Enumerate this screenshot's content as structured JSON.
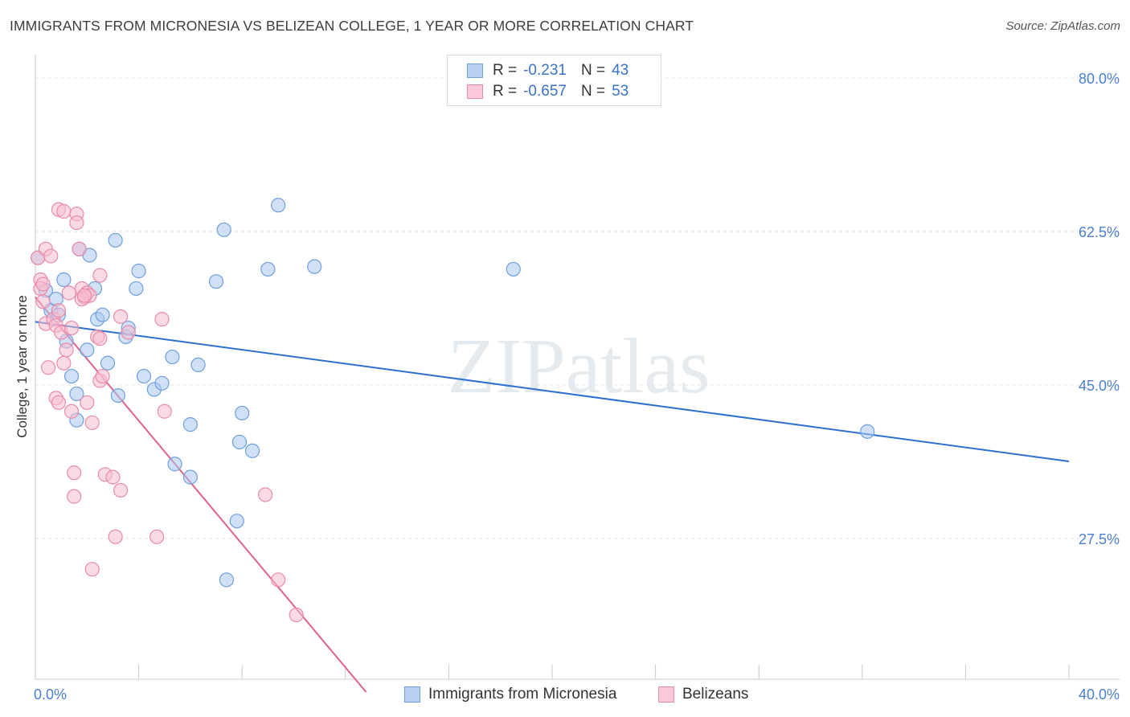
{
  "chart_data": {
    "type": "scatter",
    "title": "IMMIGRANTS FROM MICRONESIA VS BELIZEAN COLLEGE, 1 YEAR OR MORE CORRELATION CHART",
    "source": "Source: ZipAtlas.com",
    "xlabel": "",
    "ylabel": "College, 1 year or more",
    "xlim": [
      0,
      40
    ],
    "ylim": [
      10,
      83
    ],
    "x_tick_labels": [
      "0.0%",
      "40.0%"
    ],
    "y_ticks": [
      27.5,
      45.0,
      62.5,
      80.0
    ],
    "y_tick_labels": [
      "27.5%",
      "45.0%",
      "62.5%",
      "80.0%"
    ],
    "grid": true,
    "watermark": "ZIPatlas",
    "legend": {
      "position": "top-center",
      "entries": [
        {
          "r_label": "R =",
          "r_value": "-0.231",
          "n_label": "N =",
          "n_value": "43"
        },
        {
          "r_label": "R =",
          "r_value": "-0.657",
          "n_label": "N =",
          "n_value": "53"
        }
      ]
    },
    "series": [
      {
        "name": "Immigrants from Micronesia",
        "color": "#a9c6ee",
        "stroke": "#6f9fdd",
        "line_color": "#2d6fd0",
        "trend": {
          "x": [
            0,
            40
          ],
          "y": [
            52.2,
            36.3
          ]
        },
        "points": [
          [
            0.1,
            59.5
          ],
          [
            0.4,
            55.8
          ],
          [
            0.6,
            53.5
          ],
          [
            0.8,
            54.8
          ],
          [
            1.1,
            57.0
          ],
          [
            1.2,
            50.0
          ],
          [
            1.4,
            46.0
          ],
          [
            1.6,
            44.0
          ],
          [
            1.7,
            60.5
          ],
          [
            2.1,
            59.8
          ],
          [
            2.3,
            56.0
          ],
          [
            2.4,
            52.5
          ],
          [
            2.6,
            53.0
          ],
          [
            2.8,
            47.5
          ],
          [
            3.1,
            61.5
          ],
          [
            3.2,
            43.8
          ],
          [
            3.5,
            50.5
          ],
          [
            3.6,
            51.5
          ],
          [
            3.9,
            56.0
          ],
          [
            4.0,
            58.0
          ],
          [
            4.2,
            46.0
          ],
          [
            4.6,
            44.5
          ],
          [
            4.9,
            45.2
          ],
          [
            5.3,
            48.2
          ],
          [
            5.4,
            36.0
          ],
          [
            6.0,
            40.5
          ],
          [
            6.3,
            47.3
          ],
          [
            6.0,
            34.5
          ],
          [
            7.0,
            56.8
          ],
          [
            7.3,
            62.7
          ],
          [
            7.4,
            22.8
          ],
          [
            7.8,
            29.5
          ],
          [
            7.9,
            38.5
          ],
          [
            8.0,
            41.8
          ],
          [
            8.4,
            37.5
          ],
          [
            9.0,
            58.2
          ],
          [
            9.4,
            65.5
          ],
          [
            10.8,
            58.5
          ],
          [
            18.5,
            58.2
          ],
          [
            32.2,
            39.7
          ],
          [
            1.6,
            41.0
          ],
          [
            0.9,
            53.0
          ],
          [
            2.0,
            49.0
          ]
        ]
      },
      {
        "name": "Belizeans",
        "color": "#f6bdd0",
        "stroke": "#e98aa9",
        "line_color": "#e0628b",
        "trend": {
          "x": [
            0,
            12.8
          ],
          "y": [
            55.0,
            10.0
          ]
        },
        "points": [
          [
            0.1,
            59.5
          ],
          [
            0.2,
            57.0
          ],
          [
            0.2,
            56.0
          ],
          [
            0.3,
            54.5
          ],
          [
            0.4,
            60.5
          ],
          [
            0.4,
            52.0
          ],
          [
            0.5,
            47.0
          ],
          [
            0.6,
            59.7
          ],
          [
            0.7,
            52.5
          ],
          [
            0.8,
            51.8
          ],
          [
            0.9,
            53.5
          ],
          [
            1.0,
            51.0
          ],
          [
            0.8,
            43.5
          ],
          [
            0.9,
            43.0
          ],
          [
            0.9,
            65.0
          ],
          [
            1.1,
            64.8
          ],
          [
            1.1,
            47.5
          ],
          [
            1.2,
            49.0
          ],
          [
            1.3,
            55.5
          ],
          [
            1.4,
            51.5
          ],
          [
            1.4,
            42.0
          ],
          [
            1.5,
            35.0
          ],
          [
            1.6,
            64.5
          ],
          [
            1.6,
            63.5
          ],
          [
            1.5,
            32.3
          ],
          [
            1.7,
            60.5
          ],
          [
            1.8,
            56.0
          ],
          [
            1.9,
            55.0
          ],
          [
            2.0,
            55.5
          ],
          [
            2.1,
            55.2
          ],
          [
            1.8,
            54.8
          ],
          [
            1.9,
            55.2
          ],
          [
            2.0,
            43.0
          ],
          [
            2.2,
            40.7
          ],
          [
            2.4,
            50.5
          ],
          [
            2.5,
            45.5
          ],
          [
            2.6,
            46.0
          ],
          [
            2.7,
            34.8
          ],
          [
            2.2,
            24.0
          ],
          [
            2.5,
            50.3
          ],
          [
            2.5,
            57.5
          ],
          [
            3.0,
            34.5
          ],
          [
            3.1,
            27.7
          ],
          [
            3.3,
            33.0
          ],
          [
            3.3,
            52.8
          ],
          [
            3.6,
            51.0
          ],
          [
            4.7,
            27.7
          ],
          [
            4.9,
            52.5
          ],
          [
            5.0,
            42.0
          ],
          [
            8.9,
            32.5
          ],
          [
            9.4,
            22.8
          ],
          [
            10.1,
            18.8
          ],
          [
            0.3,
            56.5
          ]
        ]
      }
    ]
  },
  "bottom_legend": [
    {
      "label": "Immigrants from Micronesia"
    },
    {
      "label": "Belizeans"
    }
  ]
}
